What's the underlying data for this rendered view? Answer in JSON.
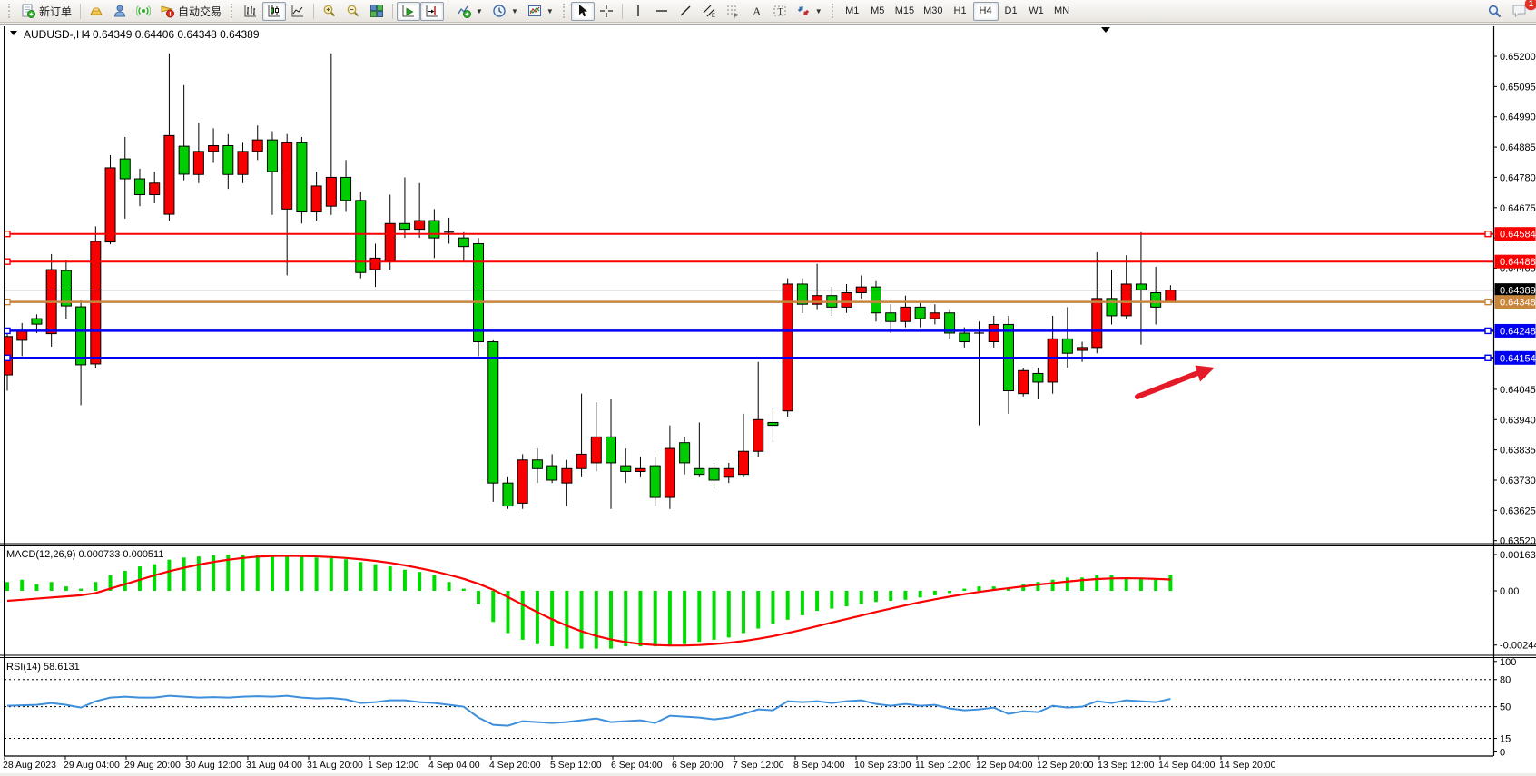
{
  "toolbar": {
    "new_order_label": "新订单",
    "auto_trading_label": "自动交易",
    "timeframes": [
      "M1",
      "M5",
      "M15",
      "M30",
      "H1",
      "H4",
      "D1",
      "W1",
      "MN"
    ],
    "active_timeframe": "H4",
    "notification_count": "1",
    "icon_names": [
      "new-order-icon",
      "gold-icon",
      "profile-icon",
      "signals-icon",
      "auto-trading-icon",
      "bar-chart-type-icon",
      "candle-chart-type-icon",
      "line-chart-type-icon",
      "zoom-in-icon",
      "zoom-out-icon",
      "tile-windows-icon",
      "auto-scroll-icon",
      "chart-shift-icon",
      "indicators-icon",
      "periods-icon",
      "templates-icon",
      "cursor-icon",
      "crosshair-icon",
      "vertical-line-icon",
      "horizontal-line-icon",
      "trendline-icon",
      "channel-icon",
      "fibonacci-icon",
      "text-icon",
      "text-label-icon",
      "arrows-icon",
      "search-icon",
      "chat-icon"
    ]
  },
  "chart_data": {
    "type": "candlestick",
    "title": {
      "symbol": "AUDUSD-,H4",
      "ohlc_text": "0.64349 0.64406 0.64348 0.64389"
    },
    "colors": {
      "up": "#F80000",
      "down": "#00CD00",
      "wick": "#000000",
      "macd_bar": "#00DC00",
      "macd_signal": "#FB0000",
      "rsi_line": "#3E8FDB",
      "red_line": "#FB0000",
      "blue_line": "#0000F2",
      "orange_line": "#C8863C",
      "bid_line": "#3a3a3a",
      "arrow": "#E51A28"
    },
    "y_axis_ticks": [
      "0.65200",
      "0.65095",
      "0.64990",
      "0.64885",
      "0.64780",
      "0.64675",
      "0.64570",
      "0.64465",
      "0.64045",
      "0.63940",
      "0.63835",
      "0.63730",
      "0.63625",
      "0.63520"
    ],
    "price_lines": [
      {
        "price": 0.64584,
        "label": "0.64584",
        "color": "#FB0000",
        "w": 2,
        "handles": "both"
      },
      {
        "price": 0.64488,
        "label": "0.64488",
        "color": "#FB0000",
        "w": 2,
        "handles": "left"
      },
      {
        "price": 0.64389,
        "label": "0.64389",
        "color": "#3a3a3a",
        "w": 1,
        "handles": "none",
        "label_bg": "#000000",
        "bid": true
      },
      {
        "price": 0.64348,
        "label": "0.64348",
        "color": "#C8863C",
        "w": 2.5,
        "handles": "both"
      },
      {
        "price": 0.64248,
        "label": "0.64248",
        "color": "#0000F2",
        "w": 2.5,
        "handles": "both"
      },
      {
        "price": 0.64154,
        "label": "0.64154",
        "color": "#0000F2",
        "w": 2.5,
        "handles": "both"
      }
    ],
    "x_labels": [
      "28 Aug 2023",
      "29 Aug 04:00",
      "29 Aug 20:00",
      "30 Aug 12:00",
      "31 Aug 04:00",
      "31 Aug 20:00",
      "1 Sep 12:00",
      "4 Sep 04:00",
      "4 Sep 20:00",
      "5 Sep 12:00",
      "6 Sep 04:00",
      "6 Sep 20:00",
      "7 Sep 12:00",
      "8 Sep 04:00",
      "10 Sep 23:00",
      "11 Sep 12:00",
      "12 Sep 04:00",
      "12 Sep 20:00",
      "13 Sep 12:00",
      "14 Sep 04:00",
      "14 Sep 20:00"
    ],
    "candles": [
      [
        0.64095,
        0.6425,
        0.6404,
        0.64228
      ],
      [
        0.64215,
        0.64275,
        0.6416,
        0.64246
      ],
      [
        0.6429,
        0.64305,
        0.6424,
        0.64271
      ],
      [
        0.64238,
        0.64514,
        0.64193,
        0.6446
      ],
      [
        0.64457,
        0.64495,
        0.6429,
        0.64334
      ],
      [
        0.64331,
        0.64353,
        0.6399,
        0.6413
      ],
      [
        0.64133,
        0.6461,
        0.64117,
        0.64558
      ],
      [
        0.64556,
        0.64857,
        0.64548,
        0.64813
      ],
      [
        0.64844,
        0.6492,
        0.64637,
        0.64775
      ],
      [
        0.64775,
        0.6481,
        0.6468,
        0.6472
      ],
      [
        0.6472,
        0.648,
        0.6469,
        0.6476
      ],
      [
        0.64652,
        0.6521,
        0.6463,
        0.64925
      ],
      [
        0.64888,
        0.651,
        0.6477,
        0.64791
      ],
      [
        0.6479,
        0.6497,
        0.6476,
        0.6487
      ],
      [
        0.6487,
        0.6495,
        0.6483,
        0.6489
      ],
      [
        0.6489,
        0.6493,
        0.6474,
        0.6479
      ],
      [
        0.6479,
        0.649,
        0.6476,
        0.6487
      ],
      [
        0.6487,
        0.6496,
        0.6484,
        0.6491
      ],
      [
        0.6491,
        0.6494,
        0.6465,
        0.648
      ],
      [
        0.6467,
        0.6493,
        0.6444,
        0.649
      ],
      [
        0.649,
        0.6492,
        0.6462,
        0.6466
      ],
      [
        0.6466,
        0.648,
        0.6463,
        0.6475
      ],
      [
        0.6468,
        0.6521,
        0.6465,
        0.6478
      ],
      [
        0.6478,
        0.6484,
        0.6466,
        0.647
      ],
      [
        0.647,
        0.6473,
        0.6443,
        0.6445
      ],
      [
        0.6446,
        0.6455,
        0.644,
        0.645
      ],
      [
        0.6449,
        0.6472,
        0.6446,
        0.6462
      ],
      [
        0.6462,
        0.6478,
        0.6457,
        0.646
      ],
      [
        0.646,
        0.6476,
        0.6457,
        0.6463
      ],
      [
        0.6463,
        0.6467,
        0.645,
        0.6457
      ],
      [
        0.6459,
        0.6464,
        0.6455,
        0.6459
      ],
      [
        0.6457,
        0.6459,
        0.6449,
        0.6454
      ],
      [
        0.6455,
        0.6457,
        0.6416,
        0.6421
      ],
      [
        0.6421,
        0.64215,
        0.63655,
        0.6372
      ],
      [
        0.6372,
        0.6374,
        0.6363,
        0.6364
      ],
      [
        0.6365,
        0.6382,
        0.6363,
        0.638
      ],
      [
        0.638,
        0.6384,
        0.6372,
        0.6377
      ],
      [
        0.6378,
        0.6382,
        0.6372,
        0.6373
      ],
      [
        0.6372,
        0.638,
        0.6364,
        0.6377
      ],
      [
        0.6377,
        0.6403,
        0.6374,
        0.6382
      ],
      [
        0.6379,
        0.64,
        0.6376,
        0.6388
      ],
      [
        0.6388,
        0.6401,
        0.6363,
        0.6379
      ],
      [
        0.6378,
        0.6384,
        0.6372,
        0.6376
      ],
      [
        0.6376,
        0.6381,
        0.6374,
        0.6377
      ],
      [
        0.6378,
        0.6381,
        0.6364,
        0.6367
      ],
      [
        0.6367,
        0.6392,
        0.6363,
        0.6384
      ],
      [
        0.6386,
        0.6388,
        0.6375,
        0.6379
      ],
      [
        0.6377,
        0.6393,
        0.6374,
        0.6375
      ],
      [
        0.6377,
        0.6379,
        0.637,
        0.6373
      ],
      [
        0.6374,
        0.6379,
        0.6372,
        0.6377
      ],
      [
        0.6375,
        0.6396,
        0.6374,
        0.6383
      ],
      [
        0.6383,
        0.6414,
        0.6381,
        0.6394
      ],
      [
        0.6393,
        0.6398,
        0.6386,
        0.6392
      ],
      [
        0.6397,
        0.6443,
        0.6395,
        0.6441
      ],
      [
        0.6441,
        0.6443,
        0.6431,
        0.6434
      ],
      [
        0.6434,
        0.6448,
        0.6432,
        0.6437
      ],
      [
        0.6437,
        0.644,
        0.643,
        0.6433
      ],
      [
        0.6433,
        0.6441,
        0.6431,
        0.6438
      ],
      [
        0.6438,
        0.6444,
        0.6436,
        0.644
      ],
      [
        0.644,
        0.6442,
        0.6428,
        0.6431
      ],
      [
        0.6431,
        0.6434,
        0.6424,
        0.6428
      ],
      [
        0.6428,
        0.6437,
        0.6426,
        0.6433
      ],
      [
        0.6433,
        0.6435,
        0.6426,
        0.6429
      ],
      [
        0.6429,
        0.6434,
        0.6427,
        0.6431
      ],
      [
        0.6431,
        0.6432,
        0.6422,
        0.6424
      ],
      [
        0.6424,
        0.6426,
        0.6419,
        0.6421
      ],
      [
        0.6424,
        0.6428,
        0.6392,
        0.6424
      ],
      [
        0.6421,
        0.643,
        0.6419,
        0.6427
      ],
      [
        0.6427,
        0.643,
        0.6396,
        0.6404
      ],
      [
        0.6403,
        0.6412,
        0.6402,
        0.6411
      ],
      [
        0.641,
        0.6412,
        0.6401,
        0.6407
      ],
      [
        0.6407,
        0.643,
        0.6403,
        0.6422
      ],
      [
        0.6422,
        0.6433,
        0.6412,
        0.6417
      ],
      [
        0.6418,
        0.6421,
        0.6414,
        0.6419
      ],
      [
        0.6419,
        0.6452,
        0.6417,
        0.6436
      ],
      [
        0.6436,
        0.6446,
        0.6427,
        0.643
      ],
      [
        0.643,
        0.6451,
        0.6429,
        0.6441
      ],
      [
        0.6441,
        0.6459,
        0.642,
        0.6439
      ],
      [
        0.6438,
        0.6447,
        0.6427,
        0.6433
      ],
      [
        0.64349,
        0.64406,
        0.64348,
        0.64389
      ]
    ],
    "macd": {
      "label": "MACD(12,26,9)",
      "values_text": "0.000733 0.000511",
      "scale_ticks": [
        "0.001635",
        "0.00",
        "-0.002442"
      ],
      "scale_values": [
        0.001635,
        0,
        -0.002442
      ],
      "histogram": [
        0.0004,
        0.0005,
        0.0003,
        0.0004,
        0.0002,
        0.0001,
        0.0004,
        0.0007,
        0.0009,
        0.0011,
        0.0012,
        0.0014,
        0.0015,
        0.00155,
        0.0016,
        0.00163,
        0.00163,
        0.0016,
        0.00158,
        0.00157,
        0.00155,
        0.0015,
        0.00147,
        0.00142,
        0.0013,
        0.0012,
        0.0011,
        0.00095,
        0.00085,
        0.0007,
        0.0004,
        0.0001,
        -0.0006,
        -0.0014,
        -0.0019,
        -0.0022,
        -0.0024,
        -0.0025,
        -0.0026,
        -0.0026,
        -0.0026,
        -0.0026,
        -0.0025,
        -0.0025,
        -0.0025,
        -0.0025,
        -0.0024,
        -0.0023,
        -0.0022,
        -0.0021,
        -0.0019,
        -0.0017,
        -0.0015,
        -0.0013,
        -0.0011,
        -0.0009,
        -0.0008,
        -0.0007,
        -0.0006,
        -0.0005,
        -0.00045,
        -0.0004,
        -0.0003,
        -0.0002,
        -0.0001,
        0.0001,
        0.0002,
        0.0002,
        0.0001,
        0.0003,
        0.0004,
        0.0005,
        0.0006,
        0.0006,
        0.0007,
        0.0007,
        0.0006,
        0.0006,
        0.0005,
        0.000733
      ],
      "signal": [
        -0.00045,
        -0.0004,
        -0.00035,
        -0.0003,
        -0.00025,
        -0.0002,
        -0.0001,
        0.0001,
        0.0003,
        0.0005,
        0.0007,
        0.00088,
        0.00104,
        0.00118,
        0.0013,
        0.0014,
        0.00148,
        0.00154,
        0.00157,
        0.00158,
        0.00157,
        0.00155,
        0.00152,
        0.00148,
        0.00142,
        0.00135,
        0.00126,
        0.00115,
        0.00102,
        0.00088,
        0.00072,
        0.00054,
        0.00032,
        5e-05,
        -0.00028,
        -0.00062,
        -0.00096,
        -0.00128,
        -0.00157,
        -0.00182,
        -0.00203,
        -0.00219,
        -0.00231,
        -0.00239,
        -0.00244,
        -0.00246,
        -0.00246,
        -0.00244,
        -0.0024,
        -0.00234,
        -0.00226,
        -0.00216,
        -0.00204,
        -0.0019,
        -0.00175,
        -0.00159,
        -0.00143,
        -0.00127,
        -0.00111,
        -0.00095,
        -0.0008,
        -0.00065,
        -0.00051,
        -0.00038,
        -0.00026,
        -0.00015,
        -5e-05,
        4e-05,
        0.00012,
        0.0002,
        0.00028,
        0.00035,
        0.00042,
        0.00048,
        0.00053,
        0.00056,
        0.00057,
        0.00056,
        0.00054,
        0.000511
      ]
    },
    "rsi": {
      "label": "RSI(14)",
      "value_text": "58.6131",
      "scale_ticks": [
        "100",
        "80",
        "50",
        "15",
        "0"
      ],
      "scale_values": [
        100,
        80,
        50,
        15,
        0
      ],
      "dashed_levels": [
        80,
        50,
        15
      ],
      "series": [
        51,
        51.5,
        52,
        54,
        52,
        49,
        56,
        60,
        61,
        60,
        60,
        62,
        61,
        60,
        60.5,
        60,
        61,
        61.5,
        61,
        62,
        60,
        59,
        59.5,
        58,
        54,
        55,
        57,
        57,
        55,
        54,
        52,
        50,
        38,
        30,
        29,
        34,
        33,
        32,
        33,
        35,
        37,
        33,
        34,
        35,
        32,
        40,
        39,
        38,
        36,
        38,
        42,
        47,
        46,
        56,
        55,
        56,
        54,
        56,
        57,
        53,
        51,
        53,
        51,
        52,
        48,
        46,
        47,
        49,
        42,
        45,
        44,
        51,
        49,
        50,
        56,
        54,
        57,
        56,
        55,
        58.6
      ]
    },
    "annotation_arrow": {
      "from": [
        1253,
        436
      ],
      "to": [
        1322,
        409
      ],
      "tip": [
        1338,
        404
      ],
      "color": "#E51A28"
    }
  }
}
